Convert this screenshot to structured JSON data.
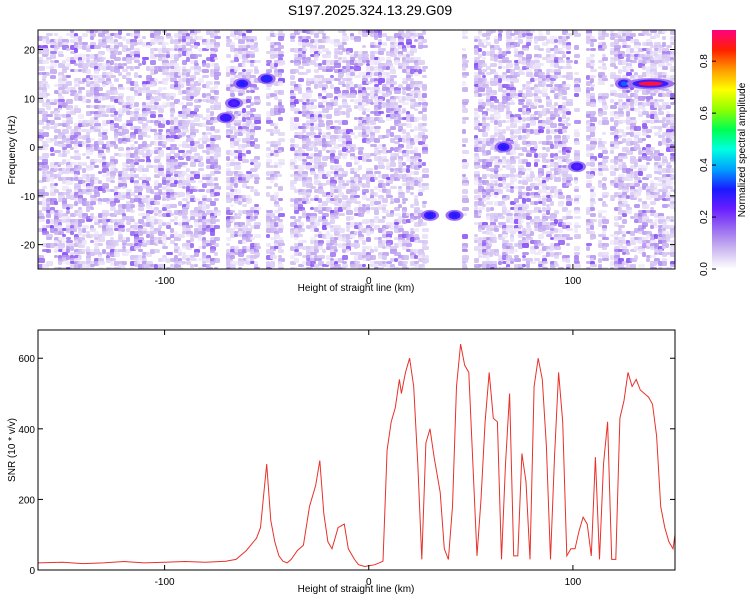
{
  "title": "S197.2025.324.13.29.G09",
  "colors": {
    "snr_line": "#e8312a",
    "colormap": [
      "#ffffff",
      "#ccb8f0",
      "#9a6cf0",
      "#6a1fff",
      "#1a1aff",
      "#00a0ff",
      "#00ffe0",
      "#00ff50",
      "#90ff00",
      "#ffff00",
      "#ff9a00",
      "#ff2000",
      "#ff0080"
    ]
  },
  "chart_data": [
    {
      "type": "heatmap",
      "name": "spectrogram",
      "xlabel": "Height of straight line (km)",
      "ylabel": "Frequency (Hz)",
      "xlim": [
        -162,
        150
      ],
      "ylim": [
        -25,
        24
      ],
      "xticks": [
        -100,
        0,
        100
      ],
      "xtick_labels": [
        "-100",
        "0",
        "100"
      ],
      "yticks": [
        -20,
        -10,
        0,
        10,
        20
      ],
      "ytick_labels": [
        "-20",
        "-10",
        "0",
        "10",
        "20"
      ],
      "colorbar": {
        "label": "Normalized spectral amplitude",
        "range": [
          0,
          0.92
        ],
        "ticks": [
          0,
          0.2,
          0.4,
          0.6,
          0.8
        ],
        "tick_labels": [
          "0.0",
          "0.2",
          "0.4",
          "0.6",
          "0.8"
        ]
      },
      "blank_bands_km": [
        [
          -75,
          -70
        ],
        [
          -55,
          -52
        ],
        [
          -44,
          -40
        ],
        [
          27,
          44
        ],
        [
          46,
          50
        ],
        [
          97,
          100
        ],
        [
          101,
          103
        ],
        [
          104,
          106
        ],
        [
          110,
          112
        ],
        [
          115,
          117
        ]
      ],
      "hotspots": [
        {
          "x": -62,
          "y": 13,
          "value": 0.3,
          "note": "chirp segment"
        },
        {
          "x": -66,
          "y": 9,
          "value": 0.25
        },
        {
          "x": -70,
          "y": 6,
          "value": 0.28
        },
        {
          "x": -50,
          "y": 14,
          "value": 0.32
        },
        {
          "x": 30,
          "y": -14,
          "value": 0.3
        },
        {
          "x": 42,
          "y": -14,
          "value": 0.3
        },
        {
          "x": 66,
          "y": 0,
          "value": 0.3
        },
        {
          "x": 102,
          "y": -4,
          "value": 0.25
        },
        {
          "x": 125,
          "y": 13,
          "value": 0.35
        },
        {
          "x": 138,
          "y": 13,
          "value": 0.88
        }
      ]
    },
    {
      "type": "line",
      "name": "snr",
      "xlabel": "Height of straight line (km)",
      "ylabel": "SNR (10 * v/v)",
      "xlim": [
        -162,
        150
      ],
      "ylim": [
        0,
        680
      ],
      "xticks": [
        -100,
        0,
        100
      ],
      "xtick_labels": [
        "-100",
        "0",
        "100"
      ],
      "yticks": [
        0,
        200,
        400,
        600
      ],
      "ytick_labels": [
        "0",
        "200",
        "400",
        "600"
      ],
      "x": [
        -162,
        -150,
        -140,
        -130,
        -120,
        -110,
        -100,
        -90,
        -80,
        -70,
        -65,
        -60,
        -55,
        -53,
        -51,
        -50,
        -48,
        -46,
        -44,
        -42,
        -40,
        -38,
        -35,
        -32,
        -29,
        -26,
        -24,
        -22,
        -20,
        -18,
        -15,
        -12,
        -10,
        -7,
        -5,
        -2,
        0,
        3,
        5,
        7,
        9,
        11,
        13,
        15,
        16,
        18,
        20,
        22,
        24,
        26,
        28,
        30,
        32,
        35,
        37,
        39,
        41,
        43,
        45,
        47,
        49,
        51,
        53,
        55,
        57,
        59,
        61,
        63,
        65,
        67,
        69,
        71,
        73,
        75,
        77,
        79,
        81,
        83,
        85,
        87,
        89,
        91,
        93,
        95,
        97,
        99,
        101,
        103,
        105,
        107,
        109,
        111,
        113,
        115,
        117,
        119,
        121,
        123,
        125,
        127,
        129,
        131,
        133,
        135,
        137,
        139,
        141,
        143,
        145,
        147,
        149,
        150
      ],
      "y": [
        20,
        22,
        18,
        20,
        24,
        20,
        22,
        24,
        22,
        25,
        30,
        55,
        90,
        120,
        240,
        300,
        140,
        80,
        40,
        25,
        20,
        30,
        55,
        70,
        180,
        240,
        310,
        160,
        80,
        60,
        120,
        130,
        60,
        30,
        15,
        10,
        12,
        15,
        20,
        25,
        340,
        420,
        460,
        540,
        500,
        560,
        600,
        520,
        300,
        30,
        360,
        400,
        320,
        220,
        60,
        30,
        180,
        520,
        640,
        580,
        560,
        300,
        40,
        200,
        420,
        560,
        430,
        420,
        30,
        300,
        500,
        40,
        40,
        330,
        250,
        30,
        520,
        600,
        540,
        350,
        30,
        320,
        560,
        420,
        40,
        60,
        60,
        110,
        150,
        130,
        40,
        320,
        30,
        300,
        420,
        30,
        30,
        430,
        480,
        560,
        520,
        540,
        510,
        500,
        490,
        470,
        380,
        180,
        120,
        80,
        60,
        100
      ]
    }
  ]
}
